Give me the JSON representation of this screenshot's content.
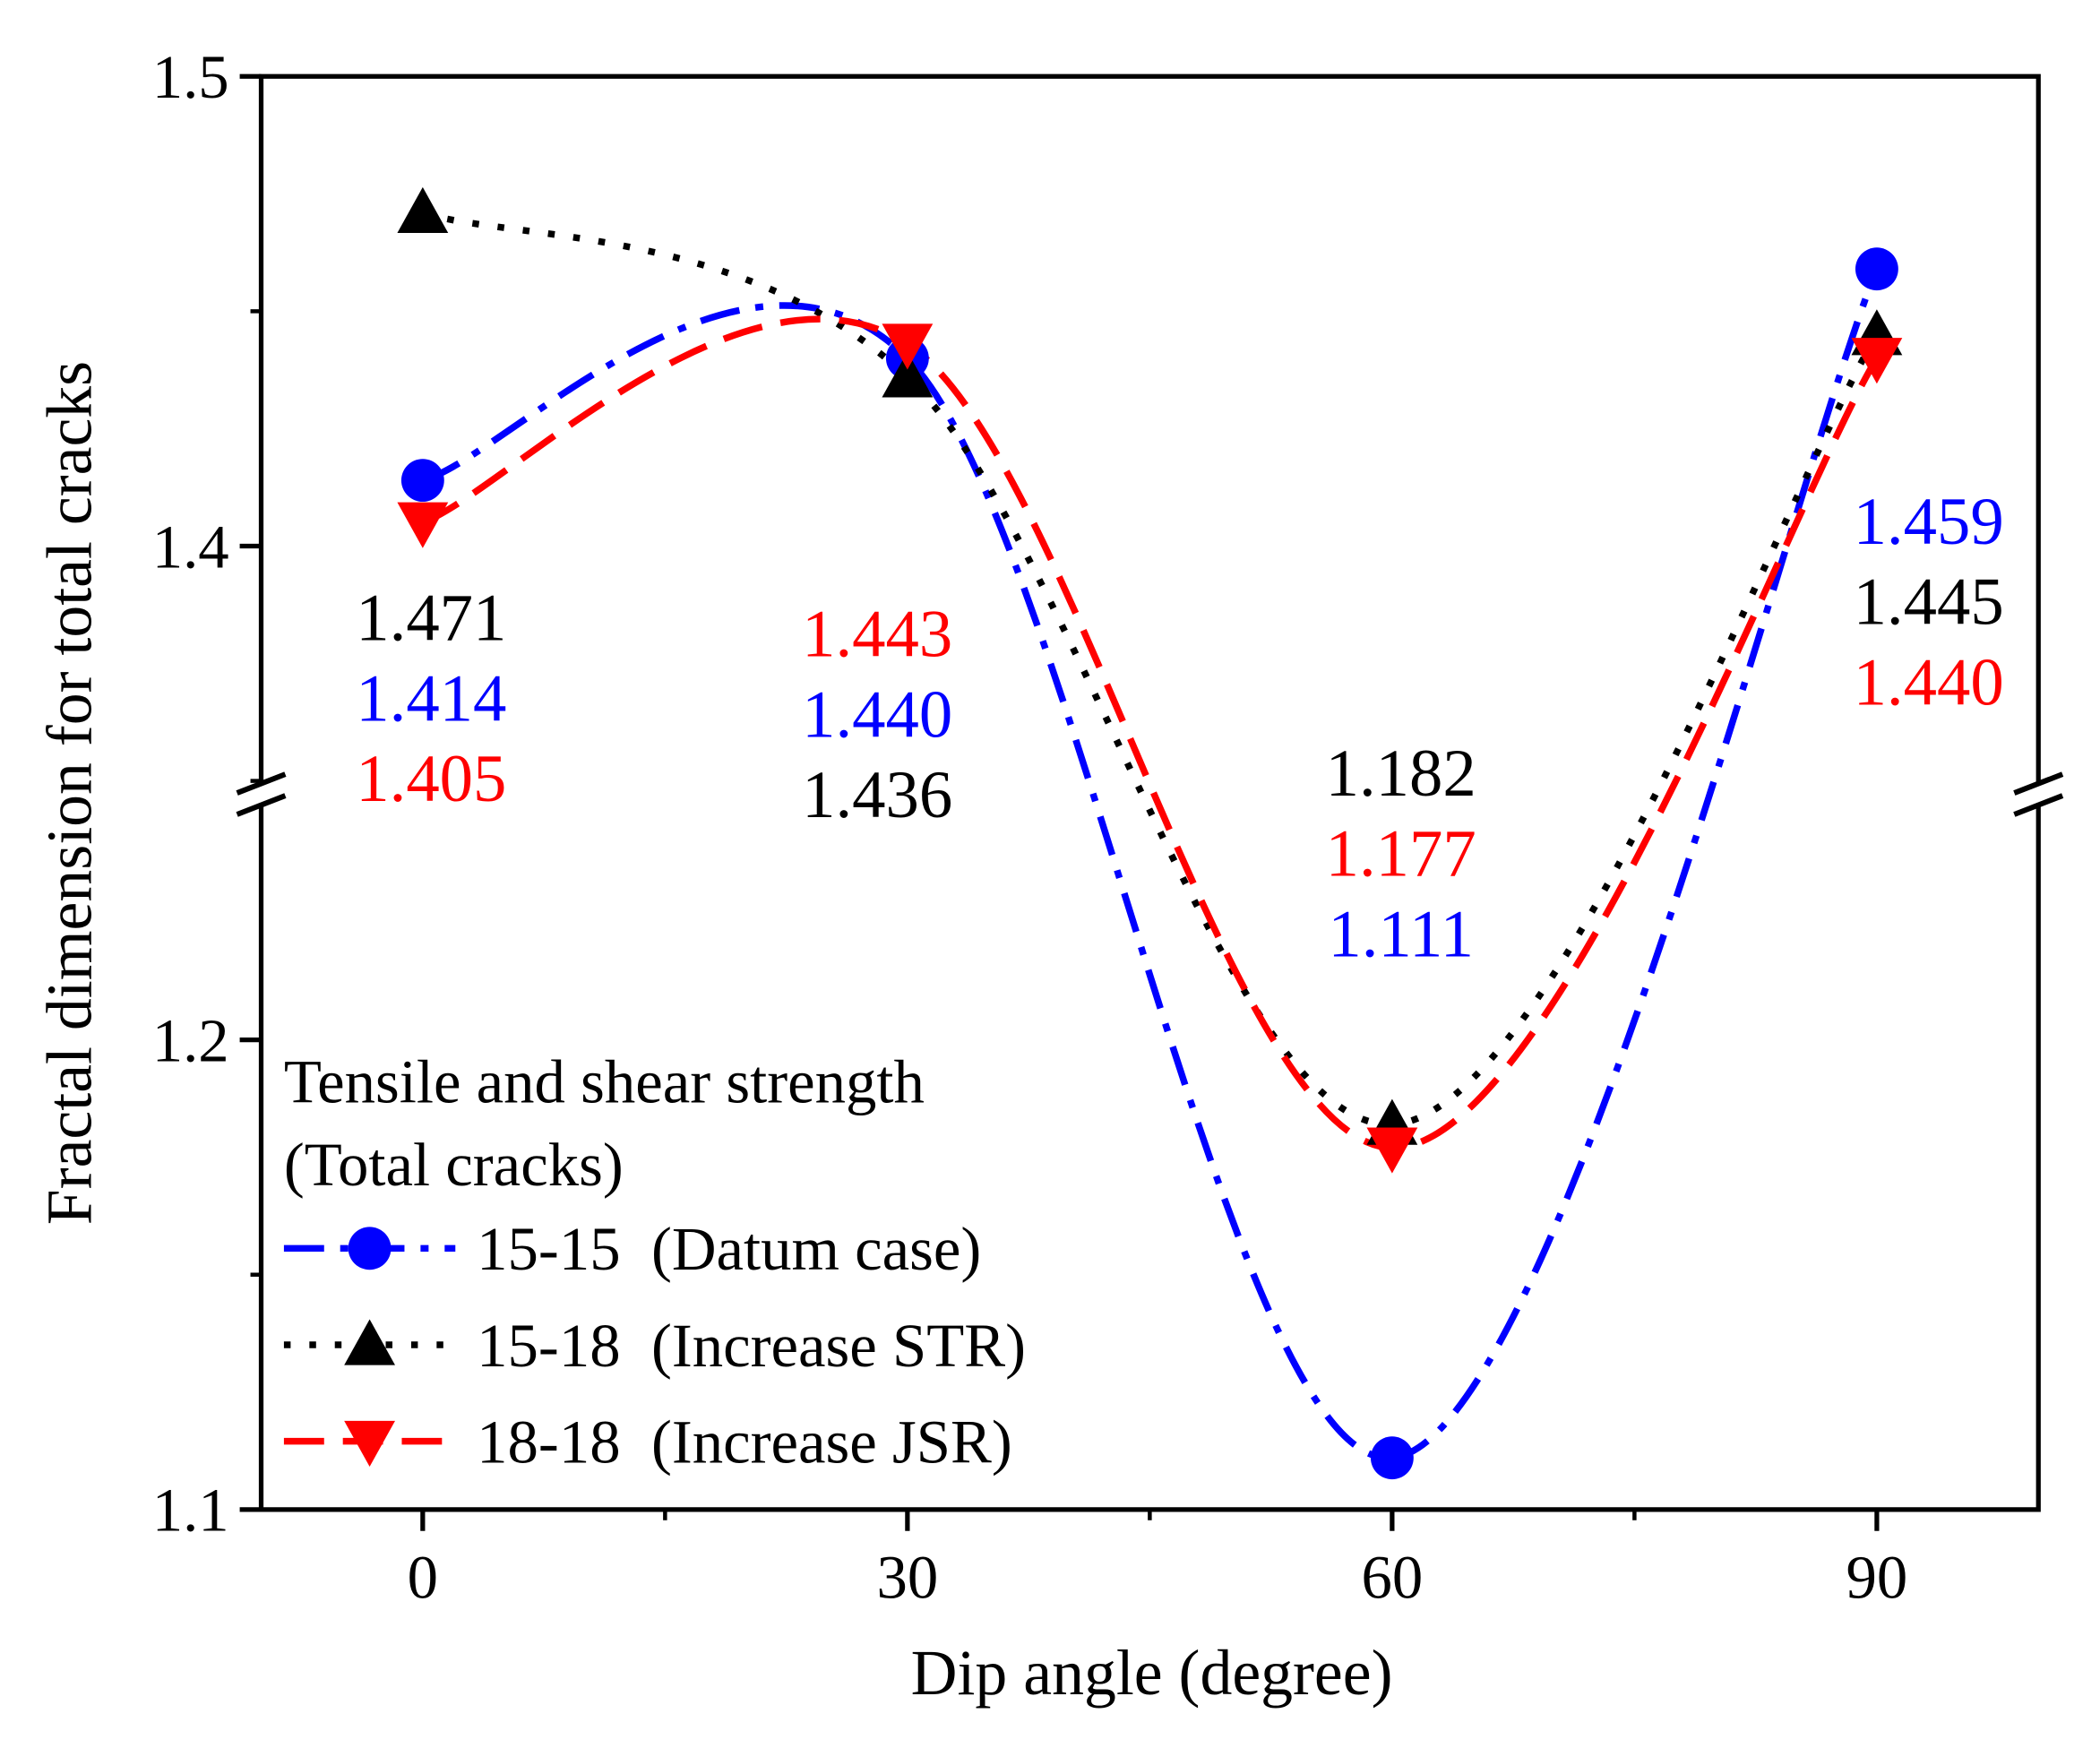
{
  "chart_data": {
    "type": "line",
    "xlabel": "Dip angle (degree)",
    "ylabel": "Fractal dimension for total cracks",
    "x": [
      0,
      30,
      60,
      90
    ],
    "xlim": [
      -10,
      100
    ],
    "xticks": [
      0,
      30,
      60,
      90
    ],
    "xtick_labels": [
      "0",
      "30",
      "60",
      "90"
    ],
    "y_break": {
      "lower_range": [
        1.1,
        1.25
      ],
      "upper_range": [
        1.35,
        1.5
      ]
    },
    "yticks": [
      1.1,
      1.2,
      1.4,
      1.5
    ],
    "ytick_labels": [
      "1.1",
      "1.2",
      "1.4",
      "1.5"
    ],
    "grid": false,
    "legend": {
      "title_line1": "Tensile and shear strength",
      "title_line2": "(Total cracks)",
      "placement": "bottom-left"
    },
    "series": [
      {
        "name": "15-15  (Datum case)",
        "color": "#0000ff",
        "marker": "circle",
        "dash": "dash-dot",
        "values": [
          1.414,
          1.44,
          1.111,
          1.459
        ]
      },
      {
        "name": "15-18  (Increase STR)",
        "color": "#000000",
        "marker": "triangle-up",
        "dash": "dot",
        "values": [
          1.471,
          1.436,
          1.182,
          1.445
        ]
      },
      {
        "name": "18-18  (Increase JSR)",
        "color": "#ff0000",
        "marker": "triangle-down",
        "dash": "dash",
        "values": [
          1.405,
          1.443,
          1.177,
          1.44
        ]
      }
    ],
    "annotations": [
      {
        "x": 0,
        "lines": [
          {
            "text": "1.471",
            "color": "#000000"
          },
          {
            "text": "1.414",
            "color": "#0000ff"
          },
          {
            "text": "1.405",
            "color": "#ff0000"
          }
        ]
      },
      {
        "x": 30,
        "lines": [
          {
            "text": "1.443",
            "color": "#ff0000"
          },
          {
            "text": "1.440",
            "color": "#0000ff"
          },
          {
            "text": "1.436",
            "color": "#000000"
          }
        ]
      },
      {
        "x": 60,
        "lines": [
          {
            "text": "1.182",
            "color": "#000000"
          },
          {
            "text": "1.177",
            "color": "#ff0000"
          },
          {
            "text": "1.111",
            "color": "#0000ff"
          }
        ]
      },
      {
        "x": 90,
        "lines": [
          {
            "text": "1.459",
            "color": "#0000ff"
          },
          {
            "text": "1.445",
            "color": "#000000"
          },
          {
            "text": "1.440",
            "color": "#ff0000"
          }
        ]
      }
    ]
  }
}
